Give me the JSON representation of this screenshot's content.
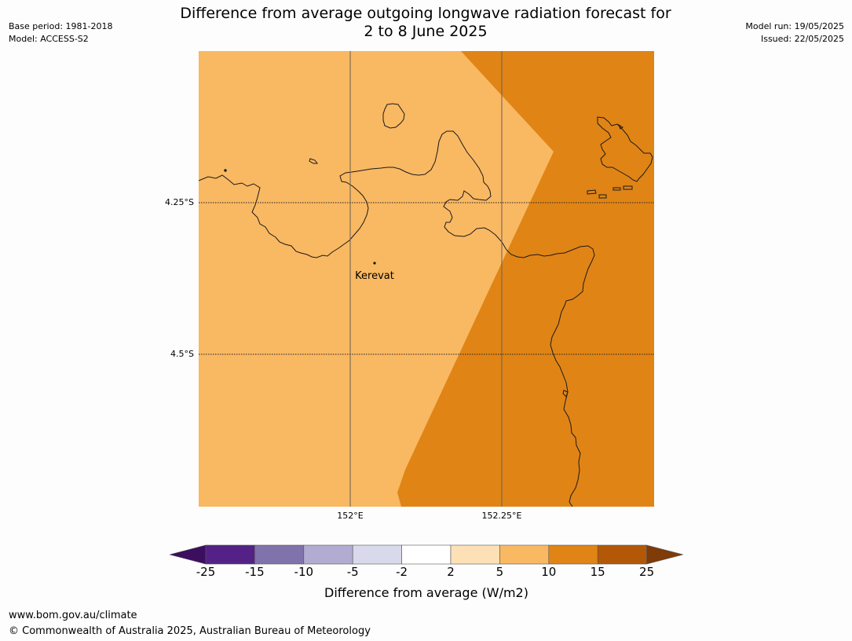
{
  "header": {
    "title_line1": "Difference from average outgoing longwave radiation forecast for",
    "title_line2": "2 to 8 June 2025",
    "base_period": "Base period: 1981-2018",
    "model": "Model: ACCESS-S2",
    "model_run": "Model run: 19/05/2025",
    "issued": "Issued: 22/05/2025"
  },
  "map": {
    "place_name": "Kerevat",
    "lat_labels": [
      "4.25°S",
      "4.5°S"
    ],
    "lon_labels": [
      "152°E",
      "152.25°E"
    ],
    "fill_colors": {
      "light": "#f9b862",
      "dark": "#e08416"
    }
  },
  "colorbar": {
    "title": "Difference from average (W/m2)",
    "ticks": [
      "-25",
      "-15",
      "-10",
      "-5",
      "-2",
      "2",
      "5",
      "10",
      "15",
      "25"
    ],
    "colors": [
      "#3b0e5f",
      "#542286",
      "#8073ac",
      "#b2abd2",
      "#d8daeb",
      "#ffffff",
      "#fee0b6",
      "#f9b862",
      "#e08416",
      "#b35807",
      "#7f3b08"
    ]
  },
  "footer": {
    "url": "www.bom.gov.au/climate",
    "copyright": "© Commonwealth of Australia 2025, Australian Bureau of Meteorology"
  }
}
